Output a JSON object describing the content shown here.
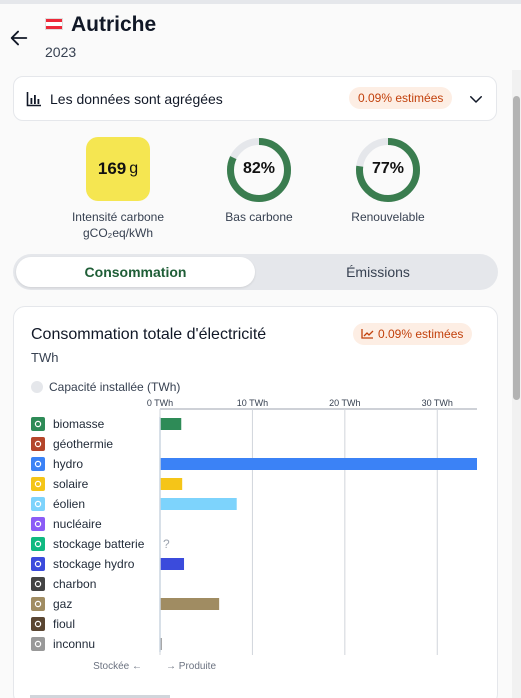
{
  "header": {
    "title": "Autriche",
    "year": "2023",
    "flag_colors": [
      "#ed2939",
      "#ffffff",
      "#ed2939"
    ]
  },
  "aggregation": {
    "label": "Les données sont agrégées",
    "badge": "0.09% estimées"
  },
  "metrics": {
    "carbon": {
      "value": "169",
      "unit": "g",
      "label_line1": "Intensité carbone",
      "label_line2": "gCO₂eq/kWh",
      "color": "#f5e651"
    },
    "low_carbon": {
      "value": "82%",
      "fraction": 0.82,
      "label": "Bas carbone"
    },
    "renewable": {
      "value": "77%",
      "fraction": 0.77,
      "label": "Renouvelable"
    },
    "ring_color": "#3a7d4f",
    "ring_track": "#e5e7eb"
  },
  "tabs": {
    "active": "Consommation",
    "inactive": "Émissions"
  },
  "card": {
    "title": "Consommation totale d'électricité",
    "unit": "TWh",
    "badge": "0.09% estimées",
    "capacity_label": "Capacité installée (TWh)",
    "footer_left": "Stockée",
    "footer_right": "Produite"
  },
  "chart_data": {
    "type": "bar",
    "orientation": "horizontal",
    "xlabel": "",
    "ylabel": "",
    "xlim": [
      0,
      34.3
    ],
    "xticks": [
      0,
      10,
      20,
      30
    ],
    "xtick_labels": [
      "0 TWh",
      "10 TWh",
      "20 TWh",
      "30 TWh"
    ],
    "categories": [
      "biomasse",
      "géothermie",
      "hydro",
      "solaire",
      "éolien",
      "nucléaire",
      "stockage batterie",
      "stockage hydro",
      "charbon",
      "gaz",
      "fioul",
      "inconnu"
    ],
    "values": [
      2.3,
      0,
      34.3,
      2.4,
      8.3,
      0,
      null,
      2.6,
      0,
      6.4,
      0,
      0.2
    ],
    "missing_marker": "?",
    "colors": [
      "#2e8b57",
      "#b5462a",
      "#3b82f6",
      "#f5c518",
      "#7dd3fc",
      "#8b5cf6",
      "#10b981",
      "#3b4bdc",
      "#444444",
      "#a08c62",
      "#5a4632",
      "#999999"
    ],
    "icons": [
      "leaf-icon",
      "geothermal-icon",
      "water-icon",
      "sun-icon",
      "wind-icon",
      "atom-icon",
      "battery-icon",
      "hydro-storage-icon",
      "coal-icon",
      "gas-icon",
      "oil-drop-icon",
      "question-icon"
    ]
  }
}
